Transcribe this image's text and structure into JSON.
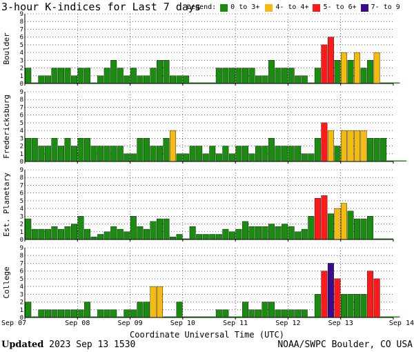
{
  "title": "3-hour K-indices for Last 7 days",
  "legend": {
    "label": "Legend:",
    "items": [
      {
        "label": "0 to 3+",
        "color": "#1a8c0f"
      },
      {
        "label": "4- to 4+",
        "color": "#f4bc12"
      },
      {
        "label": "5- to 6+",
        "color": "#ff1a1a"
      },
      {
        "label": "7- to 9",
        "color": "#3c0a8c"
      }
    ]
  },
  "footer": {
    "updated_label": "Updated",
    "updated_value": "2023 Sep 13 1530",
    "credit": "NOAA/SWPC Boulder, CO USA"
  },
  "chart_data": {
    "type": "bar",
    "xlabel": "Coordinate Universal Time (UTC)",
    "x_ticks": [
      "Sep 07",
      "Sep 08",
      "Sep 09",
      "Sep 10",
      "Sep 11",
      "Sep 12",
      "Sep 13",
      "Sep 14"
    ],
    "y_ticks": [
      "0",
      "1",
      "2",
      "3",
      "4",
      "5",
      "6",
      "7",
      "8",
      "9"
    ],
    "ylim": [
      0,
      9
    ],
    "grid": true,
    "panels": [
      {
        "name": "Boulder",
        "values": [
          2,
          0,
          1,
          1,
          2,
          2,
          2,
          1,
          2,
          2,
          0,
          1,
          2,
          3,
          2,
          1,
          2,
          1,
          1,
          2,
          3,
          3,
          1,
          1,
          1,
          0,
          0,
          0,
          0,
          2,
          2,
          2,
          2,
          2,
          2,
          1,
          1,
          3,
          2,
          2,
          2,
          1,
          1,
          0,
          2,
          5,
          6,
          3,
          4,
          3,
          4,
          2,
          3,
          4,
          0,
          0,
          0
        ]
      },
      {
        "name": "Fredericksburg",
        "values": [
          3,
          3,
          2,
          2,
          3,
          2,
          3,
          2,
          3,
          3,
          2,
          2,
          2,
          2,
          2,
          1,
          1,
          3,
          3,
          2,
          2,
          3,
          4,
          1,
          1,
          2,
          2,
          1,
          2,
          1,
          2,
          1,
          2,
          2,
          1,
          2,
          2,
          3,
          2,
          2,
          2,
          2,
          1,
          1,
          3,
          5,
          4,
          2,
          4,
          4,
          4,
          4,
          3,
          3,
          3,
          0,
          0,
          0
        ]
      },
      {
        "name": "Est. Planetary",
        "values": [
          2.67,
          1.33,
          1.33,
          1.33,
          1.67,
          1.33,
          1.67,
          2,
          3,
          1.33,
          0.33,
          0.67,
          1,
          1.67,
          1.33,
          1,
          3,
          1.67,
          1.33,
          2.33,
          2.67,
          2.67,
          0.33,
          0.67,
          0,
          1.67,
          0.67,
          0.67,
          0.67,
          0.67,
          1.33,
          1,
          1.33,
          2.33,
          1.67,
          1.67,
          1.67,
          2,
          1.67,
          2,
          1.67,
          1,
          1.33,
          3,
          5.33,
          5.67,
          3.33,
          4,
          4.67,
          3.67,
          2.67,
          2.67,
          3,
          0,
          0,
          0
        ]
      },
      {
        "name": "College",
        "values": [
          2,
          0,
          1,
          1,
          1,
          1,
          1,
          1,
          1,
          2,
          0,
          1,
          1,
          1,
          0,
          1,
          1,
          2,
          2,
          4,
          4,
          0,
          0,
          2,
          0,
          0,
          0,
          0,
          0,
          1,
          1,
          0,
          0,
          2,
          1,
          1,
          2,
          2,
          1,
          1,
          1,
          1,
          1,
          0,
          3,
          6,
          7,
          5,
          3,
          3,
          3,
          3,
          6,
          5,
          0,
          0,
          0
        ]
      }
    ]
  }
}
